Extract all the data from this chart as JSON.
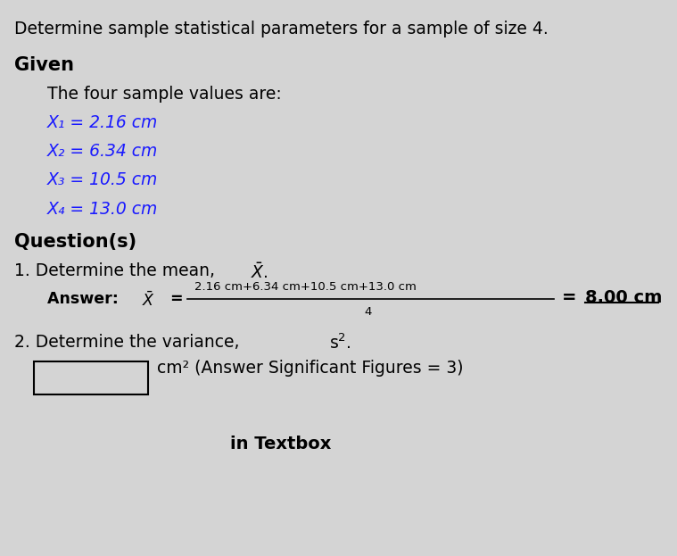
{
  "title": "Determine sample statistical parameters for a sample of size 4.",
  "given_header": "Given",
  "given_intro": "The four sample values are:",
  "samples": [
    "X₁ = 2.16 cm",
    "X₂ = 6.34 cm",
    "X₃ = 10.5 cm",
    "X₄ = 13.0 cm"
  ],
  "questions_header": "Question(s)",
  "q1_numerator": "2.16 cm+6.34 cm+10.5 cm+13.0 cm",
  "q1_denominator": "4",
  "q2_box_text": "cm² (Answer Significant Figures = 3)",
  "bottom_text": "in Textbox",
  "bg_color": "#d4d4d4",
  "text_color": "#000000",
  "blue_color": "#1a1aff",
  "title_fontsize": 13.5,
  "header_fontsize": 15,
  "body_fontsize": 13.5,
  "small_fontsize": 9.5
}
